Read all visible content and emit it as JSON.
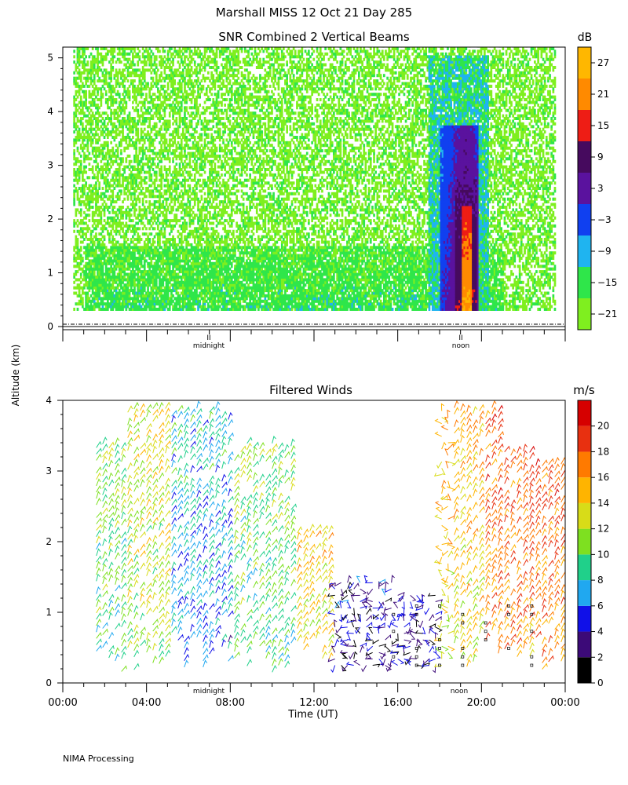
{
  "page": {
    "title": "Marshall MISS   12 Oct 21 Day 285",
    "footer": "NIMA Processing",
    "shared_ylabel": "Altitude (km)",
    "xlabel": "Time (UT)",
    "marker_midnight": "midnight",
    "marker_noon": "noon",
    "marker_glyph": "II"
  },
  "chart_data": [
    {
      "type": "heatmap",
      "title": "SNR Combined 2 Vertical Beams",
      "colorbar_unit": "dB",
      "colorbar_ticks": [
        "27",
        "21",
        "15",
        "9",
        "3",
        "−3",
        "−9",
        "−15",
        "−21"
      ],
      "colorbar_levels": [
        -24,
        -18,
        -12,
        -6,
        0,
        6,
        12,
        18,
        24,
        30
      ],
      "colorbar_colors": [
        "#7fef1f",
        "#2fe64a",
        "#1fb4f0",
        "#1040f0",
        "#5a129e",
        "#460a5e",
        "#ee1d15",
        "#ff8a00",
        "#ffb700"
      ],
      "xlim": [
        0,
        24
      ],
      "ylim": [
        0,
        5.2
      ],
      "yticks": [
        "0",
        "1",
        "2",
        "3",
        "4",
        "5"
      ],
      "features": [
        {
          "region": "background speckle",
          "t_range": [
            0.5,
            23.5
          ],
          "alt_range": [
            0.3,
            5.2
          ],
          "snr_db": -20
        },
        {
          "region": "boundary layer band",
          "t_range": [
            1,
            21
          ],
          "alt_range": [
            0.3,
            1.5
          ],
          "snr_db": -14
        },
        {
          "region": "convective core",
          "t_range": [
            18,
            19.8
          ],
          "alt_range": [
            0.3,
            3.7
          ],
          "snr_db": 6
        },
        {
          "region": "peak",
          "t_range": [
            19.0,
            19.5
          ],
          "alt_range": [
            0.3,
            2.2
          ],
          "snr_db": 26
        }
      ]
    },
    {
      "type": "scatter",
      "title": "Filtered Winds",
      "colorbar_unit": "m/s",
      "colorbar_ticks": [
        "20",
        "18",
        "16",
        "14",
        "12",
        "10",
        "8",
        "6",
        "4",
        "2",
        "0"
      ],
      "colorbar_levels": [
        0,
        2,
        4,
        6,
        8,
        10,
        12,
        14,
        16,
        18,
        20,
        22
      ],
      "colorbar_colors": [
        "#000000",
        "#3c0a78",
        "#1010e8",
        "#20a8f0",
        "#20d08a",
        "#7ee020",
        "#d8dc18",
        "#ffb400",
        "#ff7a00",
        "#e83010",
        "#d60000"
      ],
      "xlim": [
        0,
        24
      ],
      "ylim": [
        0,
        4
      ],
      "yticks": [
        "0",
        "1",
        "2",
        "3",
        "4"
      ],
      "xticks": [
        "00:00",
        "04:00",
        "08:00",
        "12:00",
        "16:00",
        "20:00",
        "00:00"
      ],
      "speed_profile_mps": [
        {
          "t_range": [
            0,
            3
          ],
          "speed": 9
        },
        {
          "t_range": [
            3,
            5
          ],
          "speed": 11
        },
        {
          "t_range": [
            5,
            8
          ],
          "speed": 6
        },
        {
          "t_range": [
            8,
            11
          ],
          "speed": 9
        },
        {
          "t_range": [
            11,
            13
          ],
          "speed": 13
        },
        {
          "t_range": [
            13,
            18
          ],
          "speed": 3
        },
        {
          "t_range": [
            18,
            20
          ],
          "speed": 13
        },
        {
          "t_range": [
            20,
            24
          ],
          "speed": 16
        }
      ]
    }
  ]
}
